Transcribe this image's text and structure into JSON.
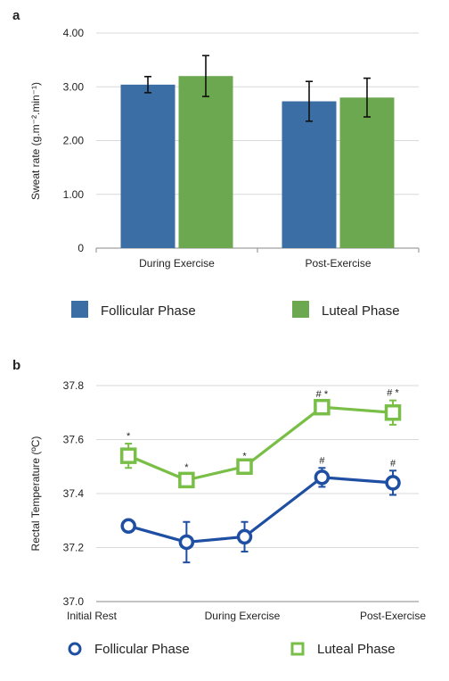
{
  "chart_data": [
    {
      "type": "bar",
      "panel_label": "a",
      "title": "",
      "xlabel": "",
      "ylabel": "Sweat rate (g.m⁻².min⁻¹)",
      "ylim": [
        0,
        4
      ],
      "yticks": [
        "0",
        "1.00",
        "2.00",
        "3.00",
        "4.00"
      ],
      "categories": [
        "During Exercise",
        "Post-Exercise"
      ],
      "grid": true,
      "legend_position": "bottom",
      "series": [
        {
          "name": "Follicular Phase",
          "color": "#3a6ea5",
          "values": [
            3.04,
            2.73
          ],
          "error": [
            0.15,
            0.37
          ]
        },
        {
          "name": "Luteal Phase",
          "color": "#6ca84f",
          "values": [
            3.2,
            2.8
          ],
          "error": [
            0.38,
            0.36
          ]
        }
      ]
    },
    {
      "type": "line",
      "panel_label": "b",
      "title": "",
      "xlabel": "",
      "ylabel": "Rectal Temperature (ºC)",
      "ylim": [
        37.0,
        37.8
      ],
      "yticks": [
        "37.0",
        "37.2",
        "37.4",
        "37.6",
        "37.8"
      ],
      "x_tick_labels": [
        "Initial Rest",
        "During Exercise",
        "Post-Exercise"
      ],
      "grid": true,
      "legend_position": "bottom",
      "series": [
        {
          "name": "Follicular Phase",
          "color": "#1f4fa3",
          "marker": "circle",
          "values": [
            37.28,
            37.22,
            37.24,
            37.46,
            37.44
          ],
          "error": [
            0.01,
            0.075,
            0.055,
            0.035,
            0.045
          ],
          "annotations": [
            "",
            "",
            "",
            "#",
            "#"
          ]
        },
        {
          "name": "Luteal Phase",
          "color": "#79bf47",
          "marker": "square",
          "values": [
            37.54,
            37.45,
            37.5,
            37.72,
            37.7
          ],
          "error": [
            0.045,
            0.02,
            0.01,
            0.02,
            0.045
          ],
          "annotations": [
            "*",
            "*",
            "*",
            "# *",
            "# *"
          ]
        }
      ]
    }
  ]
}
